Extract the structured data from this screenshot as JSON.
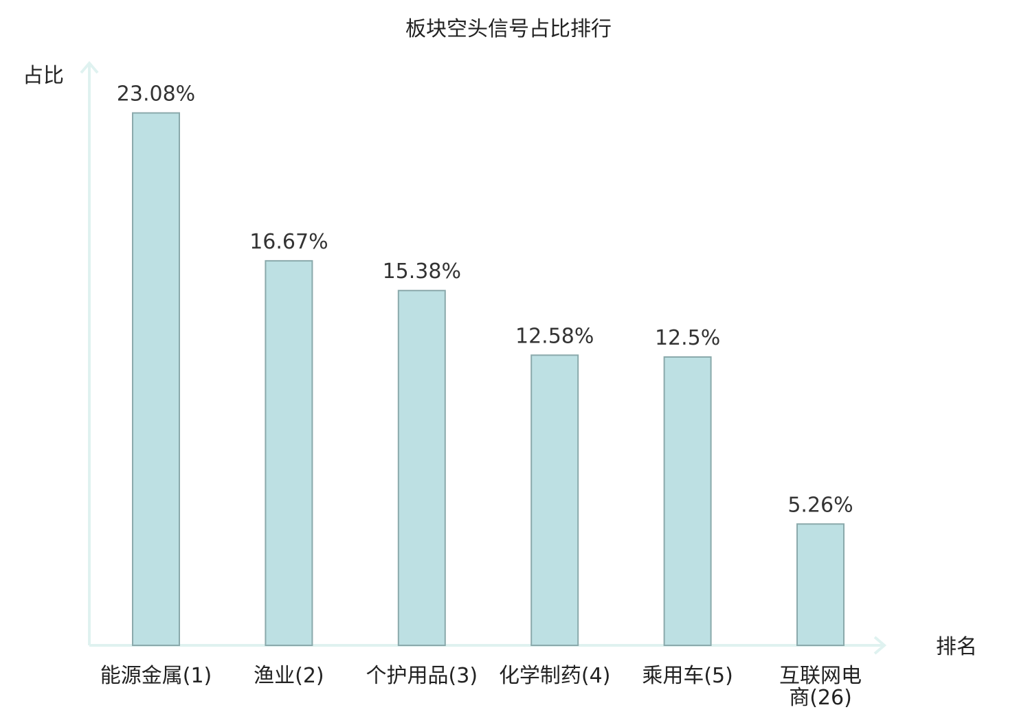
{
  "chart_data": {
    "type": "bar",
    "title": "板块空头信号占比排行",
    "ylabel": "占比",
    "xlabel": "排名",
    "categories": [
      [
        "能源金属(1)"
      ],
      [
        "渔业(2)"
      ],
      [
        "个护用品(3)"
      ],
      [
        "化学制药(4)"
      ],
      [
        "乘用车(5)"
      ],
      [
        "互联网电",
        "商(26)"
      ]
    ],
    "values": [
      23.08,
      16.67,
      15.38,
      12.58,
      12.5,
      5.26
    ],
    "value_labels": [
      "23.08%",
      "16.67%",
      "15.38%",
      "12.58%",
      "12.5%",
      "5.26%"
    ],
    "highlight": [
      false,
      false,
      false,
      false,
      false,
      true
    ],
    "ylim": [
      0,
      25
    ],
    "grid": false,
    "colors": {
      "bar_fill": "#bde0e3",
      "bar_stroke": "#8aa9ab",
      "axis": "#dff2f0",
      "highlight_label": "#e02020",
      "text": "#222222"
    }
  }
}
